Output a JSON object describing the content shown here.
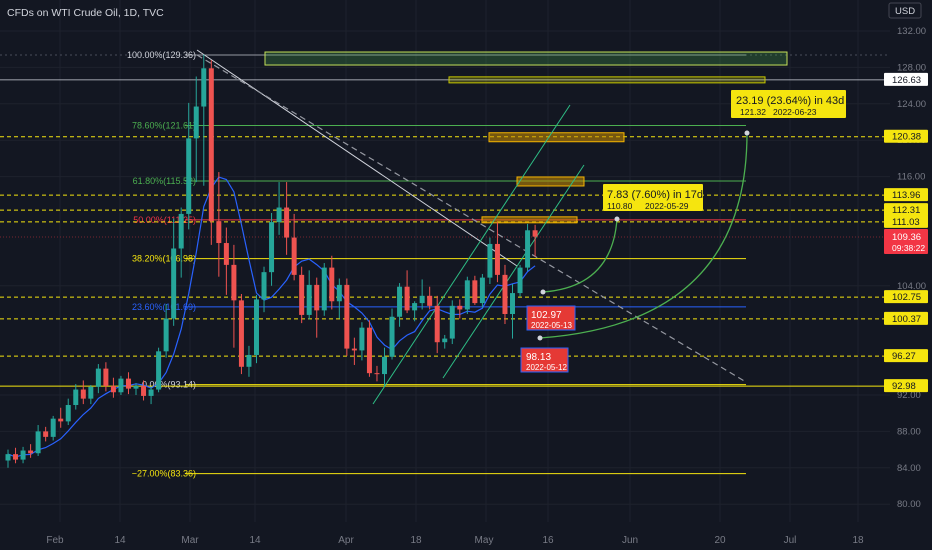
{
  "header": {
    "symbol_title": "CFDs on WTI Crude Oil, 1D, TVC"
  },
  "currency_button": "USD",
  "colors": {
    "background": "#131722",
    "up": "#26a69a",
    "down": "#ef5350",
    "ma": "#2962ff",
    "yellow": "#f5e50f",
    "green_hl": "#2ebd85",
    "red_hl": "#e74c3c",
    "fib_green": "#4caf50",
    "fib_red": "#f23645",
    "fib_yellow": "#c8c800",
    "text": "#d1d4dc",
    "axis_text": "#787b86"
  },
  "chart_data": {
    "type": "candlestick",
    "title": "CFDs on WTI Crude Oil, 1D, TVC",
    "ylim": [
      78,
      133
    ],
    "price_ticks": [
      132,
      128,
      124,
      120,
      116,
      104,
      92,
      88,
      84,
      80
    ],
    "x_axis_labels": [
      "Feb",
      "14",
      "Mar",
      "14",
      "Apr",
      "18",
      "May",
      "16",
      "Jun",
      "20",
      "Jul",
      "18"
    ],
    "candles": [
      {
        "o": 84.8,
        "h": 86.0,
        "l": 84.0,
        "c": 85.5
      },
      {
        "o": 85.5,
        "h": 86.2,
        "l": 84.5,
        "c": 84.9
      },
      {
        "o": 84.9,
        "h": 86.3,
        "l": 84.5,
        "c": 85.9
      },
      {
        "o": 85.9,
        "h": 86.6,
        "l": 85.1,
        "c": 85.6
      },
      {
        "o": 85.6,
        "h": 88.7,
        "l": 85.3,
        "c": 88.0
      },
      {
        "o": 88.0,
        "h": 88.5,
        "l": 86.9,
        "c": 87.4
      },
      {
        "o": 87.4,
        "h": 89.7,
        "l": 87.0,
        "c": 89.4
      },
      {
        "o": 89.4,
        "h": 90.6,
        "l": 88.4,
        "c": 89.1
      },
      {
        "o": 89.1,
        "h": 91.6,
        "l": 88.7,
        "c": 90.9
      },
      {
        "o": 90.9,
        "h": 93.2,
        "l": 90.4,
        "c": 92.6
      },
      {
        "o": 92.6,
        "h": 93.6,
        "l": 91.0,
        "c": 91.6
      },
      {
        "o": 91.6,
        "h": 93.1,
        "l": 91.0,
        "c": 92.9
      },
      {
        "o": 92.9,
        "h": 95.4,
        "l": 92.2,
        "c": 94.9
      },
      {
        "o": 94.9,
        "h": 95.6,
        "l": 92.4,
        "c": 93.0
      },
      {
        "o": 93.0,
        "h": 93.9,
        "l": 91.7,
        "c": 92.3
      },
      {
        "o": 92.3,
        "h": 94.1,
        "l": 92.0,
        "c": 93.8
      },
      {
        "o": 93.8,
        "h": 94.5,
        "l": 92.1,
        "c": 92.7
      },
      {
        "o": 92.7,
        "h": 93.3,
        "l": 92.0,
        "c": 93.0
      },
      {
        "o": 93.0,
        "h": 93.6,
        "l": 91.4,
        "c": 91.9
      },
      {
        "o": 91.9,
        "h": 92.9,
        "l": 91.0,
        "c": 92.6
      },
      {
        "o": 92.6,
        "h": 97.2,
        "l": 92.3,
        "c": 96.8
      },
      {
        "o": 96.8,
        "h": 102.0,
        "l": 96.1,
        "c": 100.4
      },
      {
        "o": 100.4,
        "h": 111.4,
        "l": 99.6,
        "c": 108.1
      },
      {
        "o": 108.1,
        "h": 112.6,
        "l": 104.9,
        "c": 111.9
      },
      {
        "o": 111.9,
        "h": 124.1,
        "l": 110.2,
        "c": 120.2
      },
      {
        "o": 120.2,
        "h": 127.0,
        "l": 115.4,
        "c": 123.7
      },
      {
        "o": 123.7,
        "h": 129.4,
        "l": 115.0,
        "c": 127.9
      },
      {
        "o": 127.9,
        "h": 128.8,
        "l": 108.5,
        "c": 111.1
      },
      {
        "o": 111.1,
        "h": 116.5,
        "l": 105.0,
        "c": 108.7
      },
      {
        "o": 108.7,
        "h": 110.4,
        "l": 103.0,
        "c": 106.3
      },
      {
        "o": 106.3,
        "h": 108.5,
        "l": 97.2,
        "c": 102.4
      },
      {
        "o": 102.4,
        "h": 103.1,
        "l": 94.3,
        "c": 95.1
      },
      {
        "o": 95.1,
        "h": 97.4,
        "l": 94.0,
        "c": 96.4
      },
      {
        "o": 96.4,
        "h": 103.0,
        "l": 95.5,
        "c": 102.5
      },
      {
        "o": 102.5,
        "h": 106.1,
        "l": 101.1,
        "c": 105.5
      },
      {
        "o": 105.5,
        "h": 112.0,
        "l": 104.0,
        "c": 111.0
      },
      {
        "o": 111.0,
        "h": 115.4,
        "l": 109.6,
        "c": 112.6
      },
      {
        "o": 112.6,
        "h": 115.4,
        "l": 107.4,
        "c": 109.3
      },
      {
        "o": 109.3,
        "h": 111.9,
        "l": 104.6,
        "c": 105.2
      },
      {
        "o": 105.2,
        "h": 106.1,
        "l": 99.9,
        "c": 100.8
      },
      {
        "o": 100.8,
        "h": 105.7,
        "l": 100.3,
        "c": 104.1
      },
      {
        "o": 104.1,
        "h": 104.9,
        "l": 98.3,
        "c": 101.3
      },
      {
        "o": 101.3,
        "h": 106.5,
        "l": 100.7,
        "c": 106.0
      },
      {
        "o": 106.0,
        "h": 107.3,
        "l": 101.4,
        "c": 102.3
      },
      {
        "o": 102.3,
        "h": 104.8,
        "l": 100.4,
        "c": 104.1
      },
      {
        "o": 104.1,
        "h": 104.8,
        "l": 96.3,
        "c": 97.1
      },
      {
        "o": 97.1,
        "h": 98.3,
        "l": 95.3,
        "c": 96.9
      },
      {
        "o": 96.9,
        "h": 100.0,
        "l": 95.8,
        "c": 99.4
      },
      {
        "o": 99.4,
        "h": 100.2,
        "l": 94.0,
        "c": 94.4
      },
      {
        "o": 94.4,
        "h": 95.2,
        "l": 93.5,
        "c": 94.3
      },
      {
        "o": 94.3,
        "h": 97.2,
        "l": 92.9,
        "c": 96.2
      },
      {
        "o": 96.2,
        "h": 101.5,
        "l": 95.9,
        "c": 100.6
      },
      {
        "o": 100.6,
        "h": 104.3,
        "l": 99.5,
        "c": 103.9
      },
      {
        "o": 103.9,
        "h": 105.7,
        "l": 101.0,
        "c": 101.3
      },
      {
        "o": 101.3,
        "h": 102.3,
        "l": 100.1,
        "c": 102.1
      },
      {
        "o": 102.1,
        "h": 104.7,
        "l": 101.4,
        "c": 102.9
      },
      {
        "o": 102.9,
        "h": 103.9,
        "l": 101.4,
        "c": 101.8
      },
      {
        "o": 101.8,
        "h": 102.9,
        "l": 96.6,
        "c": 97.8
      },
      {
        "o": 97.8,
        "h": 98.6,
        "l": 97.1,
        "c": 98.2
      },
      {
        "o": 98.2,
        "h": 102.4,
        "l": 97.6,
        "c": 101.8
      },
      {
        "o": 101.8,
        "h": 102.5,
        "l": 100.4,
        "c": 101.4
      },
      {
        "o": 101.4,
        "h": 105.0,
        "l": 100.9,
        "c": 104.6
      },
      {
        "o": 104.6,
        "h": 105.1,
        "l": 101.9,
        "c": 102.1
      },
      {
        "o": 102.1,
        "h": 105.3,
        "l": 101.6,
        "c": 104.9
      },
      {
        "o": 104.9,
        "h": 109.3,
        "l": 104.2,
        "c": 108.6
      },
      {
        "o": 108.6,
        "h": 111.0,
        "l": 104.4,
        "c": 105.2
      },
      {
        "o": 105.2,
        "h": 106.3,
        "l": 99.8,
        "c": 100.9
      },
      {
        "o": 100.9,
        "h": 104.2,
        "l": 98.2,
        "c": 103.2
      },
      {
        "o": 103.2,
        "h": 106.3,
        "l": 102.8,
        "c": 106.0
      },
      {
        "o": 106.0,
        "h": 110.8,
        "l": 105.6,
        "c": 110.1
      },
      {
        "o": 110.1,
        "h": 110.7,
        "l": 107.2,
        "c": 109.4
      }
    ],
    "fib_levels": [
      {
        "label": "100.00%(129.36)",
        "price": 129.36
      },
      {
        "label": "78.60%(121.61)",
        "price": 121.61
      },
      {
        "label": "61.80%(115.52)",
        "price": 115.52
      },
      {
        "label": "50.00%(111.25)",
        "price": 111.25
      },
      {
        "label": "38.20%(106.98)",
        "price": 106.98
      },
      {
        "label": "23.60%(101.69)",
        "price": 101.69
      },
      {
        "label": "0.00%(93.14)",
        "price": 93.14
      },
      {
        "label": "−27.00%(83.36)",
        "price": 83.36
      }
    ],
    "horizontal_levels": [
      126.63,
      120.38,
      113.96,
      112.31,
      111.03,
      102.75,
      100.37,
      96.27,
      92.98
    ],
    "last_price": {
      "value": "109.36",
      "countdown": "09:38:22"
    },
    "annotations": {
      "proj_short": {
        "line1": "7.83 (7.60%) in 17d",
        "line2a": "110.80",
        "line2b": "2022-05-29"
      },
      "proj_long": {
        "line1": "23.19 (23.64%) in 43d",
        "line2a": "121.32",
        "line2b": "2022-06-23"
      },
      "low_1": {
        "value": "102.97",
        "date": "2022-05-13"
      },
      "low_2": {
        "value": "98.13",
        "date": "2022-05-12"
      }
    }
  }
}
